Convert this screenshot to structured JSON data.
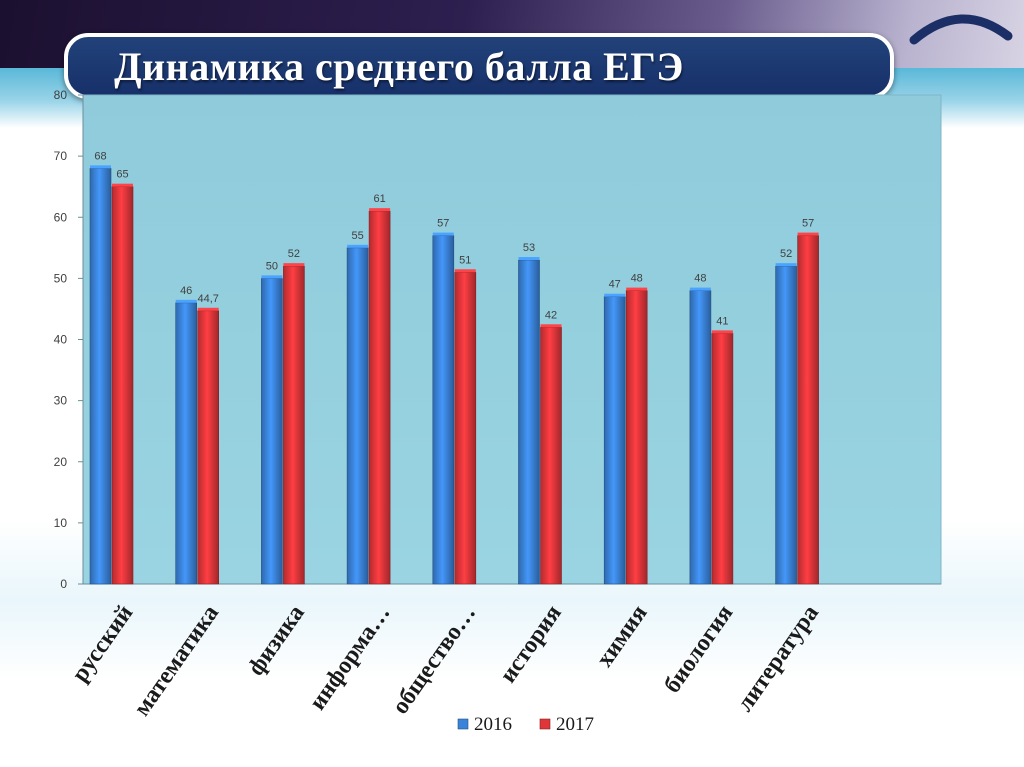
{
  "title": "Динамика среднего балла ЕГЭ",
  "colors": {
    "header_dark": "#1c1030",
    "title_box": "#1d3a74",
    "plot_bg": "#93cfde",
    "series_2016": "#3b83d9",
    "series_2017": "#e0363a"
  },
  "icons": {
    "corner_arc": "arc-icon"
  },
  "chart_data": {
    "type": "bar",
    "title": "",
    "xlabel": "",
    "ylabel": "",
    "ylim": [
      0,
      80
    ],
    "yticks": [
      "0",
      "10",
      "20",
      "30",
      "40",
      "50",
      "60",
      "70",
      "80"
    ],
    "grid": false,
    "legend_position": "bottom",
    "categories": [
      "русский",
      "математика",
      "физика",
      "информа…",
      "общество…",
      "история",
      "химия",
      "биология",
      "литература"
    ],
    "series": [
      {
        "name": "2016",
        "color": "#3b83d9",
        "values": [
          68,
          46,
          50,
          55,
          57,
          53,
          47,
          48,
          52
        ],
        "labels": [
          "68",
          "46",
          "50",
          "55",
          "57",
          "53",
          "47",
          "48",
          "52"
        ]
      },
      {
        "name": "2017",
        "color": "#e0363a",
        "values": [
          65,
          44.7,
          52,
          61,
          51,
          42,
          48,
          41,
          57
        ],
        "labels": [
          "65",
          "44,7",
          "52",
          "61",
          "51",
          "42",
          "48",
          "41",
          "57"
        ]
      }
    ]
  }
}
